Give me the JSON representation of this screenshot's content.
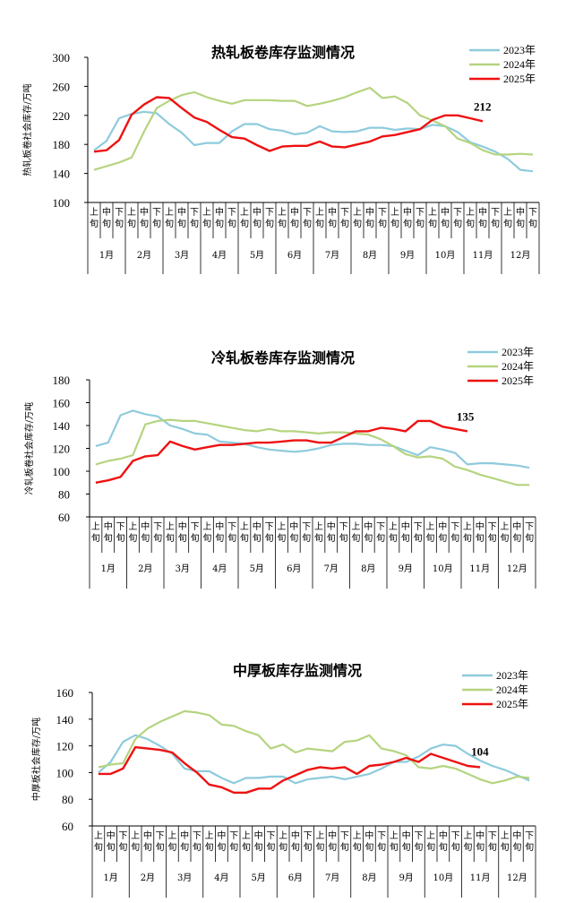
{
  "series_colors": {
    "2023": "#8ecbdc",
    "2024": "#b5d47f",
    "2025": "#ee1111"
  },
  "chart_data": [
    {
      "type": "line",
      "title": "热轧板卷库存监测情况",
      "ylabel": "热轧板卷社会库存/万吨",
      "ylim": [
        100,
        300
      ],
      "yticks": [
        100,
        140,
        180,
        220,
        260,
        300
      ],
      "xtick_sub": [
        "上旬",
        "中旬",
        "下旬"
      ],
      "months": [
        "1月",
        "2月",
        "3月",
        "4月",
        "5月",
        "6月",
        "7月",
        "8月",
        "9月",
        "10月",
        "11月",
        "12月"
      ],
      "series": [
        {
          "name": "2023年",
          "values": [
            172,
            185,
            216,
            222,
            225,
            223,
            208,
            196,
            179,
            182,
            182,
            198,
            208,
            208,
            201,
            199,
            194,
            196,
            205,
            198,
            197,
            198,
            203,
            203,
            200,
            202,
            201,
            207,
            205,
            197,
            183,
            177,
            170,
            160,
            145,
            143
          ]
        },
        {
          "name": "2024年",
          "values": [
            145,
            150,
            155,
            162,
            198,
            230,
            240,
            248,
            252,
            245,
            240,
            236,
            241,
            241,
            241,
            240,
            240,
            233,
            236,
            240,
            245,
            252,
            258,
            244,
            246,
            237,
            220,
            213,
            205,
            188,
            182,
            172,
            166,
            166,
            167,
            166
          ]
        },
        {
          "name": "2025年",
          "values": [
            170,
            172,
            186,
            221,
            235,
            245,
            244,
            230,
            217,
            211,
            200,
            190,
            188,
            179,
            171,
            177,
            178,
            178,
            184,
            177,
            176,
            180,
            184,
            191,
            193,
            197,
            201,
            214,
            220,
            220,
            216,
            212
          ]
        }
      ],
      "annotation": "212"
    },
    {
      "type": "line",
      "title": "冷轧板卷库存监测情况",
      "ylabel": "冷轧板卷社会库存/万吨",
      "ylim": [
        60,
        180
      ],
      "yticks": [
        60,
        80,
        100,
        120,
        140,
        160,
        180
      ],
      "xtick_sub": [
        "上旬",
        "中旬",
        "下旬"
      ],
      "months": [
        "1月",
        "2月",
        "3月",
        "4月",
        "5月",
        "6月",
        "7月",
        "8月",
        "9月",
        "10月",
        "11月",
        "12月"
      ],
      "series": [
        {
          "name": "2023年",
          "values": [
            122,
            125,
            149,
            153,
            150,
            148,
            140,
            137,
            133,
            132,
            126,
            125,
            124,
            121,
            119,
            118,
            117,
            118,
            120,
            123,
            124,
            124,
            123,
            123,
            122,
            118,
            114,
            121,
            119,
            116,
            106,
            107,
            107,
            106,
            105,
            103
          ]
        },
        {
          "name": "2024年",
          "values": [
            106,
            109,
            111,
            114,
            141,
            144,
            145,
            144,
            144,
            142,
            140,
            138,
            136,
            135,
            137,
            135,
            135,
            134,
            133,
            134,
            134,
            133,
            132,
            128,
            122,
            115,
            112,
            113,
            111,
            104,
            101,
            97,
            94,
            91,
            88,
            88
          ]
        },
        {
          "name": "2025年",
          "values": [
            90,
            92,
            95,
            109,
            113,
            114,
            126,
            122,
            119,
            121,
            123,
            123,
            124,
            125,
            125,
            126,
            127,
            127,
            125,
            125,
            130,
            135,
            135,
            138,
            137,
            135,
            144,
            144,
            139,
            137,
            135
          ]
        }
      ],
      "annotation": "135"
    },
    {
      "type": "line",
      "title": "中厚板库存监测情况",
      "ylabel": "中厚板社会库存/万吨",
      "ylim": [
        60,
        160
      ],
      "yticks": [
        60,
        80,
        100,
        120,
        140,
        160
      ],
      "xtick_sub": [
        "上旬",
        "中旬",
        "下旬"
      ],
      "months": [
        "1月",
        "2月",
        "3月",
        "4月",
        "5月",
        "6月",
        "7月",
        "8月",
        "9月",
        "10月",
        "11月",
        "12月"
      ],
      "series": [
        {
          "name": "2023年",
          "values": [
            100,
            108,
            123,
            128,
            125,
            120,
            114,
            103,
            101,
            101,
            96,
            92,
            96,
            96,
            97,
            97,
            92,
            95,
            96,
            97,
            95,
            97,
            99,
            103,
            108,
            108,
            112,
            118,
            121,
            120,
            114,
            109,
            105,
            102,
            98,
            94
          ]
        },
        {
          "name": "2024年",
          "values": [
            104,
            106,
            107,
            125,
            133,
            138,
            142,
            146,
            145,
            143,
            136,
            135,
            131,
            128,
            118,
            121,
            115,
            118,
            117,
            116,
            123,
            124,
            128,
            118,
            116,
            113,
            104,
            103,
            105,
            103,
            99,
            95,
            92,
            94,
            97,
            96
          ]
        },
        {
          "name": "2025年",
          "values": [
            99,
            99,
            103,
            119,
            118,
            117,
            115,
            107,
            100,
            91,
            89,
            85,
            85,
            88,
            88,
            94,
            98,
            102,
            104,
            103,
            104,
            99,
            105,
            106,
            108,
            111,
            108,
            114,
            111,
            108,
            105,
            104
          ]
        }
      ],
      "annotation": "104"
    }
  ]
}
